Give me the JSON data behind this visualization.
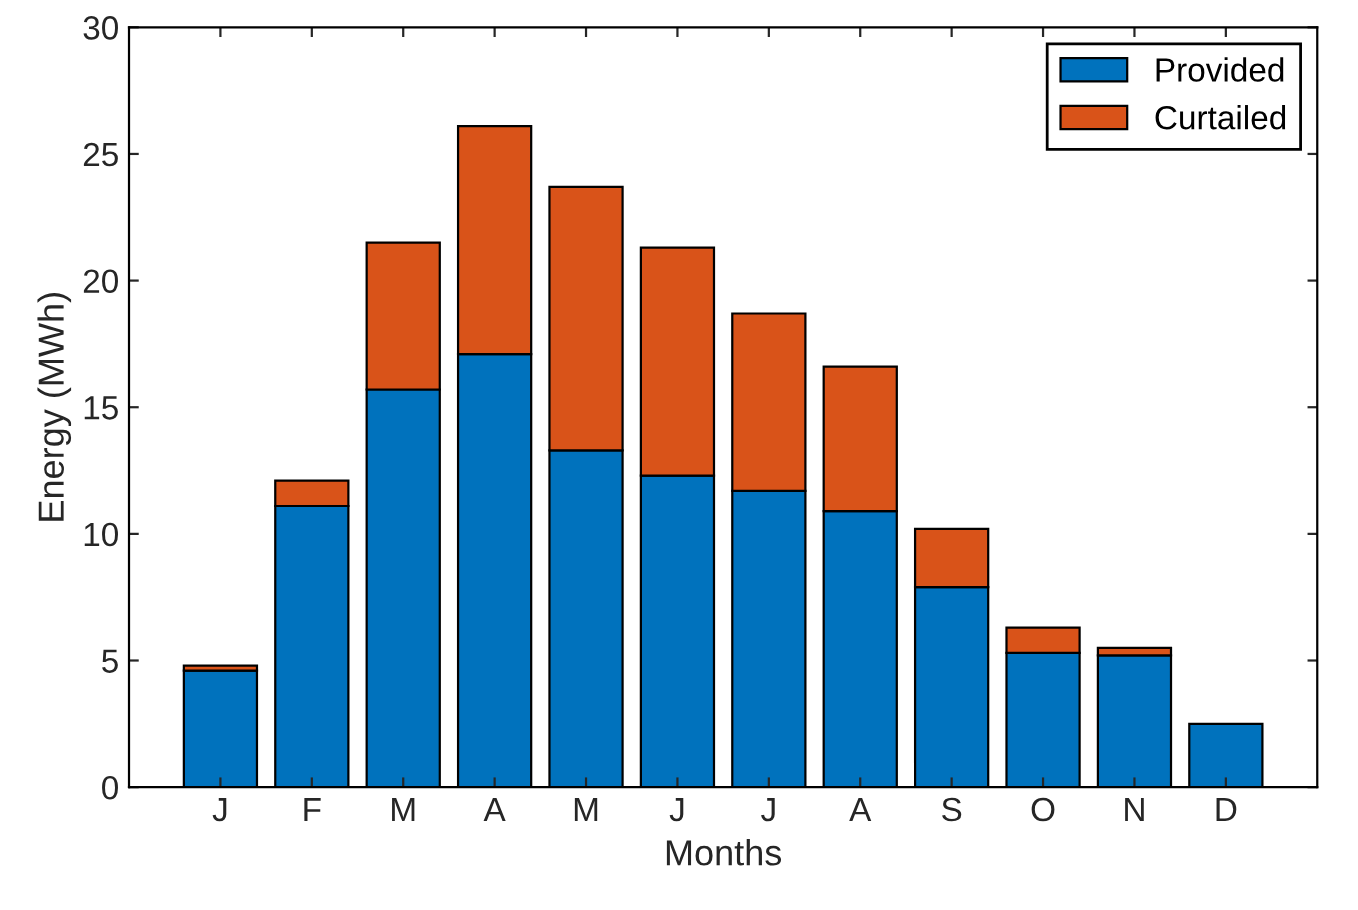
{
  "chart_data": {
    "type": "bar",
    "stacked": true,
    "xlabel": "Months",
    "ylabel": "Energy (MWh)",
    "categories": [
      "J",
      "F",
      "M",
      "A",
      "M",
      "J",
      "J",
      "A",
      "S",
      "O",
      "N",
      "D"
    ],
    "series": [
      {
        "name": "Provided",
        "color": "#0072bd",
        "values": [
          4.6,
          11.1,
          15.7,
          17.1,
          13.3,
          12.3,
          11.7,
          10.9,
          7.9,
          5.3,
          5.2,
          2.5
        ]
      },
      {
        "name": "Curtailed",
        "color": "#d95319",
        "values": [
          0.2,
          1.0,
          5.8,
          9.0,
          10.4,
          9.0,
          7.0,
          5.7,
          2.3,
          1.0,
          0.3,
          null
        ]
      }
    ],
    "ylim": [
      0,
      30
    ],
    "yticks": [
      0,
      5,
      10,
      15,
      20,
      25,
      30
    ],
    "grid": false,
    "legend": "top right"
  }
}
